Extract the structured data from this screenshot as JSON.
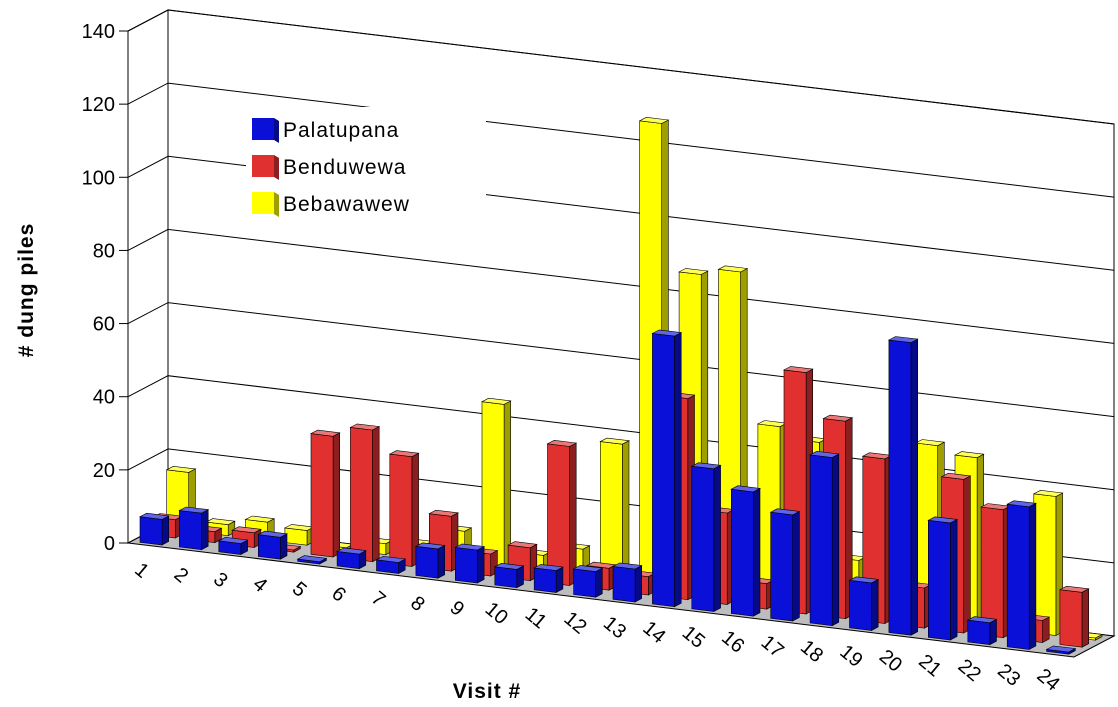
{
  "chart_data": {
    "type": "bar",
    "chart_style": "3d-clustered-column",
    "title": "",
    "xlabel": "Visit #",
    "ylabel": "# dung piles",
    "ylim": [
      0,
      140
    ],
    "y_ticks": [
      "0",
      "20",
      "40",
      "60",
      "80",
      "100",
      "120",
      "140"
    ],
    "categories": [
      "1",
      "2",
      "3",
      "4",
      "5",
      "6",
      "7",
      "8",
      "9",
      "10",
      "11",
      "12",
      "13",
      "14",
      "15",
      "16",
      "17",
      "18",
      "19",
      "20",
      "21",
      "22",
      "23",
      "24"
    ],
    "series": [
      {
        "name": "Palatupana",
        "color": "#0a10d8",
        "values": [
          7,
          10,
          3,
          6,
          0,
          4,
          3,
          8,
          9,
          5,
          6,
          7,
          9,
          74,
          39,
          34,
          29,
          46,
          13,
          80,
          32,
          6,
          39,
          0
        ]
      },
      {
        "name": "Benduwewa",
        "color": "#e03030",
        "values": [
          5,
          3,
          4,
          0,
          33,
          36,
          30,
          15,
          6,
          9,
          38,
          6,
          5,
          55,
          25,
          7,
          66,
          54,
          45,
          11,
          42,
          35,
          6,
          15
        ]
      },
      {
        "name": "Bebawawew",
        "color": "#ffff00",
        "values": [
          16,
          3,
          5,
          4,
          0,
          3,
          4,
          9,
          45,
          5,
          8,
          38,
          127,
          87,
          89,
          48,
          45,
          14,
          41,
          48,
          46,
          3,
          38,
          0
        ]
      }
    ],
    "grid": true,
    "legend_position": "upper-left"
  }
}
